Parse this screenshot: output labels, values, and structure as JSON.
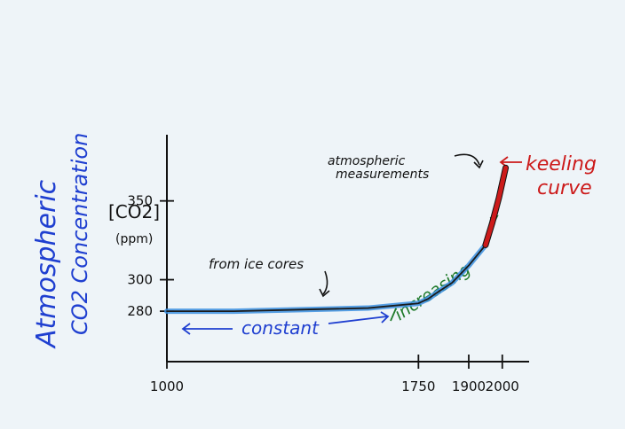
{
  "chart_data": {
    "type": "line",
    "title": "",
    "ylabel_line1": "Atmospheric",
    "ylabel_line2": "CO2 Concentration",
    "units_line1": "[CO2]",
    "units_line2": "(ppm)",
    "x_ticks": [
      1000,
      1750,
      1900,
      2000
    ],
    "y_ticks": [
      280,
      300,
      350
    ],
    "xlim": [
      1000,
      2080
    ],
    "ylim": [
      248,
      392
    ],
    "series": [
      {
        "color": "#1a1a1a",
        "highlight_color": "#3b8fe0",
        "x": [
          1000,
          1200,
          1400,
          1600,
          1750,
          1780,
          1800,
          1850,
          1900,
          1950
        ],
        "y": [
          280,
          280,
          281,
          282,
          285,
          288,
          291,
          298,
          309,
          322
        ]
      },
      {
        "color": "#cc1a1a",
        "x": [
          1950,
          1970,
          1990,
          2010
        ],
        "y": [
          322,
          336,
          352,
          371
        ]
      }
    ],
    "annotations": {
      "ice_cores": "from ice cores",
      "atmospheric_measurements_1": "atmospheric",
      "atmospheric_measurements_2": "measurements",
      "keeling_1": "keeling",
      "keeling_2": "curve",
      "constant": "constant",
      "increasing": "increasing"
    }
  },
  "colors": {
    "axis": "#111111",
    "blue_ink": "#1f3fd0",
    "green_ink": "#1f7a2a",
    "red_ink": "#cc1a1a",
    "highlight": "#5bb4f0"
  }
}
